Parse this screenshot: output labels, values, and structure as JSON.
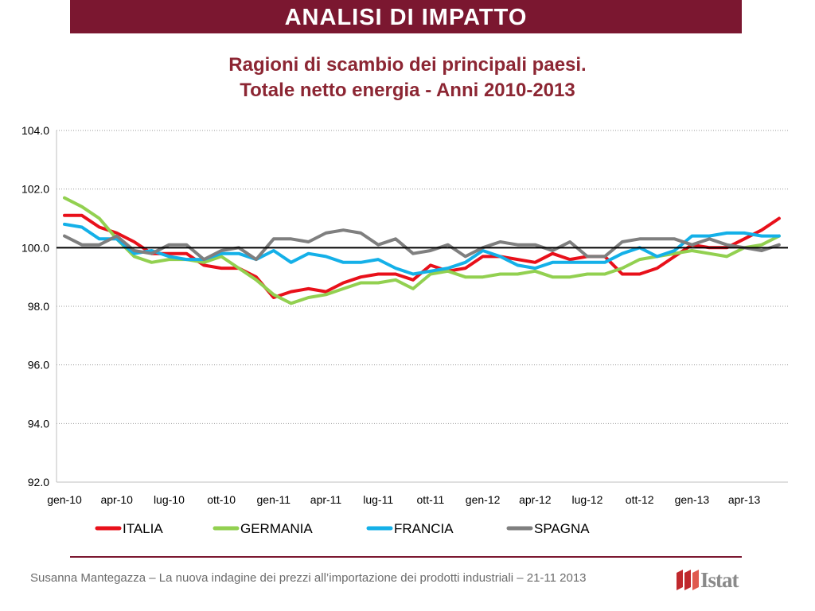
{
  "header": {
    "title": "ANALISI DI IMPATTO"
  },
  "colors": {
    "banner": "#7b1730",
    "title": "#8c2633",
    "italia": "#e8101a",
    "germania": "#92d050",
    "francia": "#14b0e8",
    "spagna": "#7f7f7f"
  },
  "chart_data": {
    "type": "line",
    "title": [
      "Ragioni di scambio dei principali paesi.",
      "Totale netto energia - Anni 2010-2013"
    ],
    "ylim": [
      92.0,
      104.0
    ],
    "yticks": [
      "92.0",
      "94.0",
      "96.0",
      "98.0",
      "100.0",
      "102.0",
      "104.0"
    ],
    "reference_line": 100.0,
    "grid": true,
    "legend": "bottom",
    "x_tick_labels": [
      "gen-10",
      "apr-10",
      "lug-10",
      "ott-10",
      "gen-11",
      "apr-11",
      "lug-11",
      "ott-11",
      "gen-12",
      "apr-12",
      "lug-12",
      "ott-12",
      "gen-13",
      "apr-13"
    ],
    "x": [
      "gen-10",
      "feb-10",
      "mar-10",
      "apr-10",
      "mag-10",
      "giu-10",
      "lug-10",
      "ago-10",
      "set-10",
      "ott-10",
      "nov-10",
      "dic-10",
      "gen-11",
      "feb-11",
      "mar-11",
      "apr-11",
      "mag-11",
      "giu-11",
      "lug-11",
      "ago-11",
      "set-11",
      "ott-11",
      "nov-11",
      "dic-11",
      "gen-12",
      "feb-12",
      "mar-12",
      "apr-12",
      "mag-12",
      "giu-12",
      "lug-12",
      "ago-12",
      "set-12",
      "ott-12",
      "nov-12",
      "dic-12",
      "gen-13",
      "feb-13",
      "mar-13",
      "apr-13",
      "mag-13",
      "giu-13",
      "lug-13"
    ],
    "series": [
      {
        "name": "ITALIA",
        "color": "#e8101a",
        "values": [
          101.1,
          101.1,
          100.7,
          100.5,
          100.2,
          99.8,
          99.8,
          99.8,
          99.4,
          99.3,
          99.3,
          99.0,
          98.3,
          98.5,
          98.6,
          98.5,
          98.8,
          99.0,
          99.1,
          99.1,
          98.9,
          99.4,
          99.2,
          99.3,
          99.7,
          99.7,
          99.6,
          99.5,
          99.8,
          99.6,
          99.7,
          99.7,
          99.1,
          99.1,
          99.3,
          99.7,
          100.1,
          100.0,
          100.0,
          100.3,
          100.6,
          101.0,
          null
        ]
      },
      {
        "name": "GERMANIA",
        "color": "#92d050",
        "values": [
          101.7,
          101.4,
          101.0,
          100.3,
          99.7,
          99.5,
          99.6,
          99.6,
          99.5,
          99.7,
          99.3,
          98.9,
          98.4,
          98.1,
          98.3,
          98.4,
          98.6,
          98.8,
          98.8,
          98.9,
          98.6,
          99.1,
          99.2,
          99.0,
          99.0,
          99.1,
          99.1,
          99.2,
          99.0,
          99.0,
          99.1,
          99.1,
          99.3,
          99.6,
          99.7,
          99.8,
          99.9,
          99.8,
          99.7,
          100.0,
          100.1,
          100.4,
          null
        ]
      },
      {
        "name": "FRANCIA",
        "color": "#14b0e8",
        "values": [
          100.8,
          100.7,
          100.3,
          100.3,
          99.8,
          99.9,
          99.7,
          99.6,
          99.6,
          99.8,
          99.8,
          99.6,
          99.9,
          99.5,
          99.8,
          99.7,
          99.5,
          99.5,
          99.6,
          99.3,
          99.1,
          99.2,
          99.3,
          99.5,
          99.9,
          99.7,
          99.4,
          99.3,
          99.5,
          99.5,
          99.5,
          99.5,
          99.8,
          100.0,
          99.7,
          99.9,
          100.4,
          100.4,
          100.5,
          100.5,
          100.4,
          100.4,
          null
        ]
      },
      {
        "name": "SPAGNA",
        "color": "#7f7f7f",
        "values": [
          100.4,
          100.1,
          100.1,
          100.4,
          99.9,
          99.8,
          100.1,
          100.1,
          99.6,
          99.9,
          100.0,
          99.6,
          100.3,
          100.3,
          100.2,
          100.5,
          100.6,
          100.5,
          100.1,
          100.3,
          99.8,
          99.9,
          100.1,
          99.7,
          100.0,
          100.2,
          100.1,
          100.1,
          99.9,
          100.2,
          99.7,
          99.7,
          100.2,
          100.3,
          100.3,
          100.3,
          100.1,
          100.3,
          100.1,
          100.0,
          99.9,
          100.1,
          null
        ]
      }
    ]
  },
  "footer": {
    "text": "Susanna Mantegazza – La nuova indagine dei prezzi all’importazione dei prodotti industriali – 21-11 2013",
    "logo_text": "Istat"
  }
}
